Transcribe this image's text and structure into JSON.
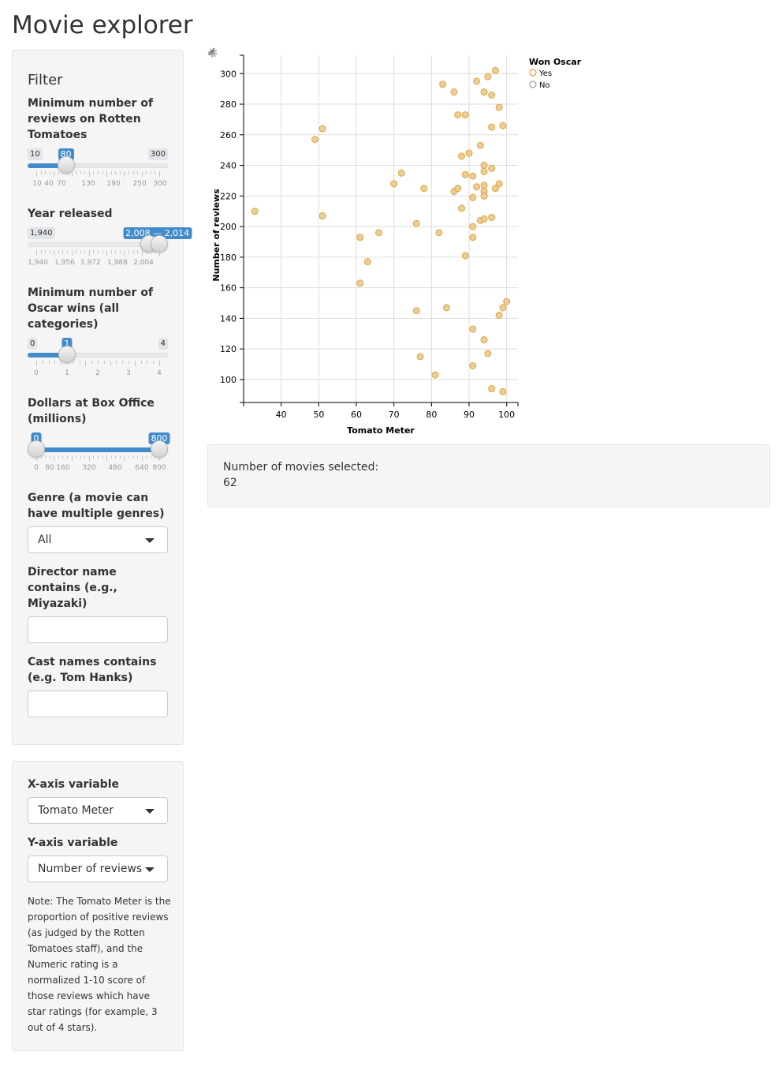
{
  "app": {
    "title": "Movie explorer"
  },
  "filters": {
    "heading": "Filter",
    "reviews": {
      "label": "Minimum number of reviews on Rotten Tomatoes",
      "min": 10,
      "max": 300,
      "value": 80,
      "min_label": "10",
      "max_label": "300",
      "value_label": "80",
      "ticks": [
        "10",
        "40",
        "70",
        "130",
        "190",
        "250",
        "300"
      ]
    },
    "year": {
      "label": "Year released",
      "min": 1940,
      "max": 2014,
      "from": 2008,
      "to": 2014,
      "min_label": "1,940",
      "range_label": "2,008 — 2,014",
      "ticks": [
        "1,940",
        "1,956",
        "1,972",
        "1,988",
        "2,004"
      ]
    },
    "oscars": {
      "label": "Minimum number of Oscar wins (all categories)",
      "min": 0,
      "max": 4,
      "value": 1,
      "min_label": "0",
      "max_label": "4",
      "value_label": "1",
      "ticks": [
        "0",
        "1",
        "2",
        "3",
        "4"
      ]
    },
    "boxoffice": {
      "label": "Dollars at Box Office (millions)",
      "min": 0,
      "max": 800,
      "from": 0,
      "to": 800,
      "from_label": "0",
      "to_label": "800",
      "ticks": [
        "0",
        "80",
        "160",
        "320",
        "480",
        "640",
        "800"
      ]
    },
    "genre": {
      "label": "Genre (a movie can have multiple genres)",
      "value": "All"
    },
    "director": {
      "label": "Director name contains (e.g., Miyazaki)",
      "value": "",
      "placeholder": ""
    },
    "cast": {
      "label": "Cast names contains (e.g. Tom Hanks)",
      "value": "",
      "placeholder": ""
    }
  },
  "axes_panel": {
    "x_label": "X-axis variable",
    "x_value": "Tomato Meter",
    "y_label": "Y-axis variable",
    "y_value": "Number of reviews",
    "note": "Note: The Tomato Meter is the proportion of positive reviews (as judged by the Rotten Tomatoes staff), and the Numeric rating is a normalized 1-10 score of those reviews which have star ratings (for example, 3 out of 4 stars)."
  },
  "summary": {
    "label": "Number of movies selected:",
    "count": "62"
  },
  "colors": {
    "point_fill": "#e8c98f",
    "point_stroke": "#e0a53a",
    "legend_no": "#9aa0a6",
    "slider_accent": "#428bca"
  },
  "chart_data": {
    "type": "scatter",
    "xlabel": "Tomato Meter",
    "ylabel": "Number of reviews",
    "xlim": [
      30,
      103
    ],
    "ylim": [
      85,
      312
    ],
    "x_ticks": [
      40,
      50,
      60,
      70,
      80,
      90,
      100
    ],
    "y_ticks": [
      100,
      120,
      140,
      160,
      180,
      200,
      220,
      240,
      260,
      280,
      300
    ],
    "grid": true,
    "legend": {
      "title": "Won Oscar",
      "placement": "top-right",
      "entries": [
        "Yes",
        "No"
      ]
    },
    "series": [
      {
        "name": "Yes",
        "points": [
          [
            33,
            210
          ],
          [
            49,
            257
          ],
          [
            51,
            264
          ],
          [
            51,
            207
          ],
          [
            61,
            193
          ],
          [
            61,
            163
          ],
          [
            63,
            177
          ],
          [
            66,
            196
          ],
          [
            70,
            228
          ],
          [
            72,
            235
          ],
          [
            76,
            202
          ],
          [
            76,
            145
          ],
          [
            77,
            115
          ],
          [
            78,
            225
          ],
          [
            81,
            103
          ],
          [
            82,
            196
          ],
          [
            83,
            293
          ],
          [
            84,
            147
          ],
          [
            86,
            288
          ],
          [
            86,
            223
          ],
          [
            87,
            273
          ],
          [
            87,
            225
          ],
          [
            88,
            246
          ],
          [
            88,
            212
          ],
          [
            89,
            273
          ],
          [
            89,
            234
          ],
          [
            89,
            181
          ],
          [
            90,
            248
          ],
          [
            91,
            233
          ],
          [
            91,
            219
          ],
          [
            91,
            200
          ],
          [
            91,
            193
          ],
          [
            91,
            133
          ],
          [
            91,
            109
          ],
          [
            92,
            295
          ],
          [
            92,
            226
          ],
          [
            93,
            253
          ],
          [
            93,
            204
          ],
          [
            94,
            288
          ],
          [
            94,
            240
          ],
          [
            94,
            236
          ],
          [
            94,
            227
          ],
          [
            94,
            223
          ],
          [
            94,
            220
          ],
          [
            94,
            205
          ],
          [
            94,
            126
          ],
          [
            95,
            298
          ],
          [
            95,
            117
          ],
          [
            96,
            286
          ],
          [
            96,
            265
          ],
          [
            96,
            238
          ],
          [
            96,
            206
          ],
          [
            96,
            94
          ],
          [
            97,
            302
          ],
          [
            97,
            225
          ],
          [
            98,
            278
          ],
          [
            98,
            228
          ],
          [
            98,
            142
          ],
          [
            99,
            266
          ],
          [
            99,
            147
          ],
          [
            99,
            92
          ],
          [
            100,
            151
          ]
        ]
      }
    ]
  }
}
